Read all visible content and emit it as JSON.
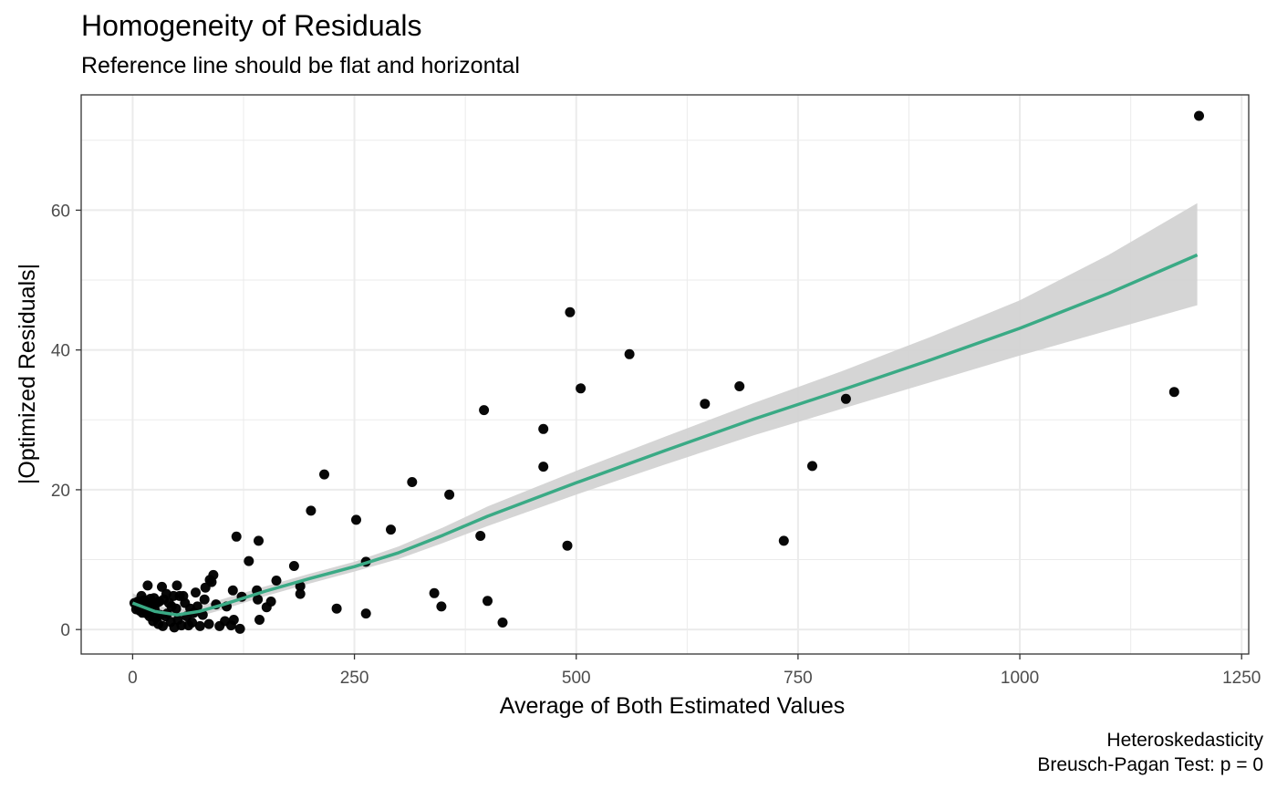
{
  "chart_data": {
    "type": "scatter",
    "title": "Homogeneity of Residuals",
    "subtitle": "Reference line should be flat and horizontal",
    "xlabel": "Average of Both Estimated Values",
    "ylabel": "|Optimized Residuals|",
    "xlim": [
      -58,
      1258
    ],
    "ylim": [
      -3.5,
      76.5
    ],
    "x_ticks": [
      0,
      250,
      500,
      750,
      1000,
      1250
    ],
    "x_tick_labels": [
      "0",
      "250",
      "500",
      "750",
      "1000",
      "1250"
    ],
    "y_ticks": [
      0,
      20,
      40,
      60
    ],
    "y_tick_labels": [
      "0",
      "20",
      "40",
      "60"
    ],
    "grid": true,
    "point_color": "#000000",
    "line_color": "#3aaa85",
    "band_color": "#d3d3d3",
    "caption": [
      "Heteroskedasticity",
      "Breusch-Pagan Test: p = 0"
    ],
    "points": [
      [
        1202,
        73.5
      ],
      [
        1174,
        34.0
      ],
      [
        804,
        33.0
      ],
      [
        766,
        23.4
      ],
      [
        734,
        12.7
      ],
      [
        684,
        34.8
      ],
      [
        645,
        32.3
      ],
      [
        560,
        39.4
      ],
      [
        505,
        34.5
      ],
      [
        493,
        45.4
      ],
      [
        490,
        12.0
      ],
      [
        463,
        28.7
      ],
      [
        463,
        23.3
      ],
      [
        417,
        1.0
      ],
      [
        400,
        4.1
      ],
      [
        396,
        31.4
      ],
      [
        392,
        13.4
      ],
      [
        357,
        19.3
      ],
      [
        348,
        3.3
      ],
      [
        340,
        5.2
      ],
      [
        315,
        21.1
      ],
      [
        291,
        14.3
      ],
      [
        263,
        9.7
      ],
      [
        263,
        2.3
      ],
      [
        252,
        15.7
      ],
      [
        230,
        3.0
      ],
      [
        216,
        22.2
      ],
      [
        201,
        17.0
      ],
      [
        189,
        6.2
      ],
      [
        189,
        5.1
      ],
      [
        182,
        9.1
      ],
      [
        162,
        7.0
      ],
      [
        156,
        4.0
      ],
      [
        151,
        3.2
      ],
      [
        143,
        1.4
      ],
      [
        142,
        12.7
      ],
      [
        141,
        4.3
      ],
      [
        140,
        5.6
      ],
      [
        131,
        9.8
      ],
      [
        123,
        4.7
      ],
      [
        121,
        0.1
      ],
      [
        117,
        13.3
      ],
      [
        114,
        1.4
      ],
      [
        113,
        5.6
      ],
      [
        111,
        0.6
      ],
      [
        106,
        3.3
      ],
      [
        104,
        1.2
      ],
      [
        98,
        0.5
      ],
      [
        94,
        3.6
      ],
      [
        91,
        7.8
      ],
      [
        89,
        6.8
      ],
      [
        87,
        7.1
      ],
      [
        86,
        0.8
      ],
      [
        82,
        6.0
      ],
      [
        81,
        4.3
      ],
      [
        79,
        2.1
      ],
      [
        76,
        0.5
      ],
      [
        73,
        3.3
      ],
      [
        71,
        5.3
      ],
      [
        69,
        2.4
      ],
      [
        67,
        1.0
      ],
      [
        65,
        3.0
      ],
      [
        63,
        0.6
      ],
      [
        61,
        1.9
      ],
      [
        59,
        3.8
      ],
      [
        57,
        4.8
      ],
      [
        55,
        0.6
      ],
      [
        53,
        4.8
      ],
      [
        51,
        1.4
      ],
      [
        50,
        6.3
      ],
      [
        49,
        3.0
      ],
      [
        47,
        0.3
      ],
      [
        46,
        4.8
      ],
      [
        44,
        3.3
      ],
      [
        43,
        1.1
      ],
      [
        41,
        3.8
      ],
      [
        39,
        2.3
      ],
      [
        38,
        5.1
      ],
      [
        37,
        1.9
      ],
      [
        35,
        4.3
      ],
      [
        34,
        0.5
      ],
      [
        33,
        6.1
      ],
      [
        31,
        2.1
      ],
      [
        30,
        4.0
      ],
      [
        29,
        0.8
      ],
      [
        27,
        3.8
      ],
      [
        26,
        1.7
      ],
      [
        25,
        2.8
      ],
      [
        24,
        4.5
      ],
      [
        23,
        1.2
      ],
      [
        22,
        3.5
      ],
      [
        21,
        2.6
      ],
      [
        20,
        4.4
      ],
      [
        19,
        1.9
      ],
      [
        18,
        3.3
      ],
      [
        17,
        6.3
      ],
      [
        16,
        2.3
      ],
      [
        15,
        3.6
      ],
      [
        14,
        2.8
      ],
      [
        13,
        4.2
      ],
      [
        12,
        3.2
      ],
      [
        11,
        2.4
      ],
      [
        10,
        4.8
      ],
      [
        9,
        3.9
      ],
      [
        8,
        2.7
      ],
      [
        7,
        3.1
      ],
      [
        6,
        4.0
      ],
      [
        5,
        3.5
      ],
      [
        4,
        2.9
      ],
      [
        2,
        3.8
      ]
    ],
    "smooth": {
      "x": [
        0,
        25,
        50,
        75,
        100,
        150,
        200,
        250,
        300,
        350,
        400,
        500,
        600,
        700,
        800,
        900,
        1000,
        1100,
        1200
      ],
      "y": [
        3.8,
        2.6,
        2.1,
        2.6,
        3.5,
        5.5,
        7.3,
        9.0,
        11.0,
        13.5,
        16.2,
        21.0,
        25.6,
        30.1,
        34.3,
        38.6,
        43.1,
        48.1,
        53.6
      ],
      "lower": [
        2.6,
        1.8,
        1.4,
        1.9,
        2.8,
        4.8,
        6.6,
        8.3,
        10.1,
        12.4,
        14.8,
        19.3,
        23.6,
        27.8,
        31.6,
        35.4,
        39.2,
        42.8,
        46.4
      ],
      "upper": [
        5.2,
        3.5,
        2.8,
        3.3,
        4.3,
        6.2,
        8.0,
        9.7,
        11.9,
        14.6,
        17.6,
        22.7,
        27.6,
        32.4,
        37.0,
        41.9,
        47.1,
        53.6,
        61.0
      ]
    }
  }
}
